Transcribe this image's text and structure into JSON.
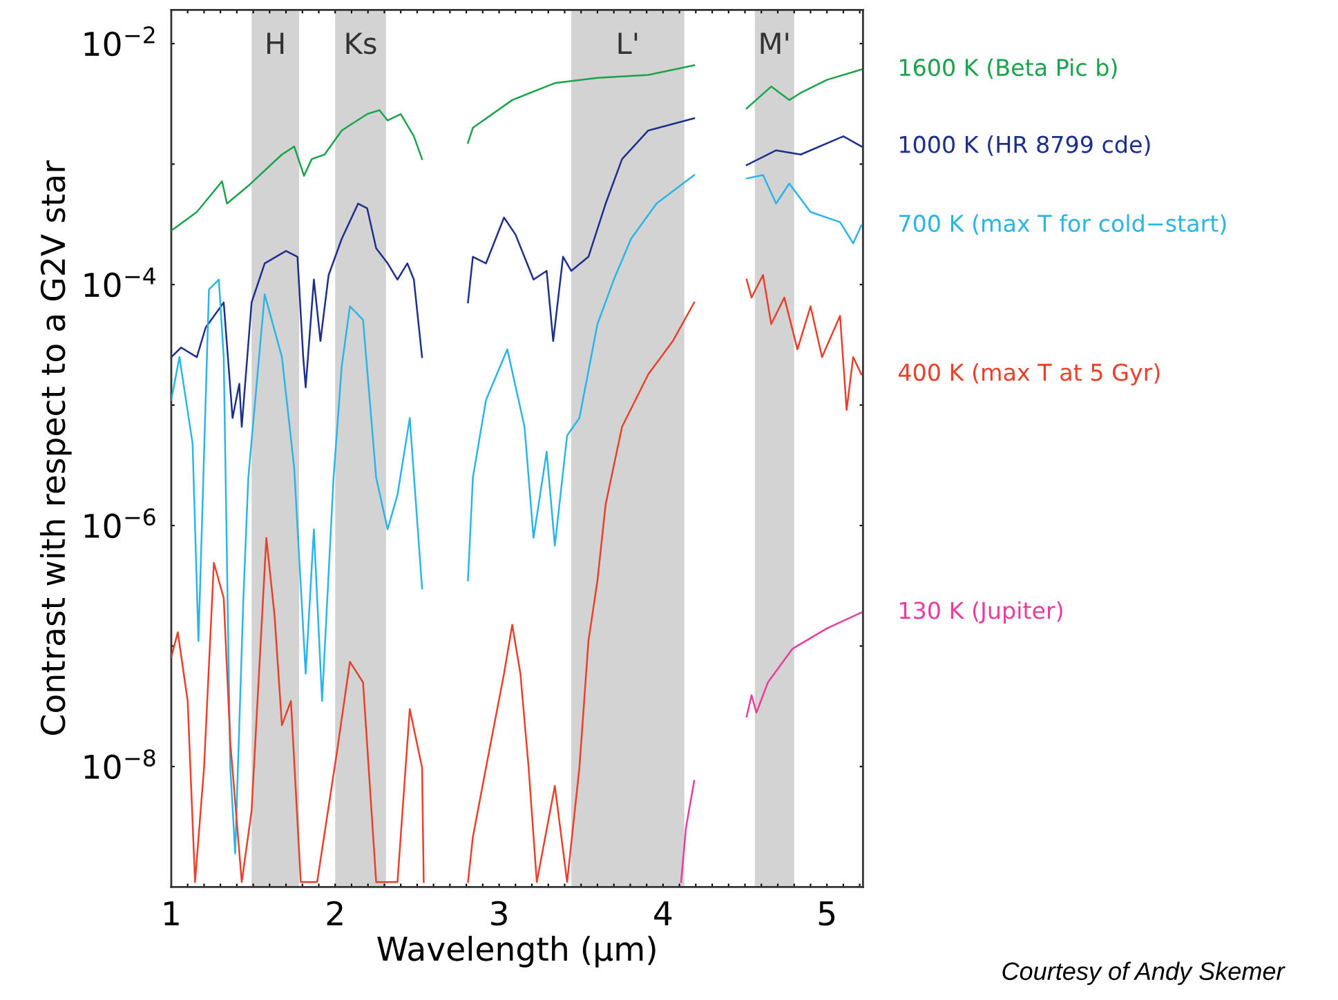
{
  "chart_data": {
    "type": "line",
    "xlabel": "Wavelength (μm)",
    "ylabel": "Contrast with respect to a G2V star",
    "log": "y",
    "xlim": [
      1,
      5.22
    ],
    "ylim": [
      1e-09,
      0.019
    ],
    "xticks": [
      1,
      2,
      3,
      4,
      5,
      {
        "value": 1.1,
        "label": null
      },
      {
        "value": 1.2,
        "label": null
      },
      {
        "value": 1.3,
        "label": null
      },
      {
        "value": 1.4,
        "label": null
      },
      {
        "value": 1.5,
        "label": null
      },
      {
        "value": 1.6,
        "label": null
      },
      {
        "value": 1.7,
        "label": null
      },
      {
        "value": 1.8,
        "label": null
      },
      {
        "value": 1.9,
        "label": null
      },
      {
        "value": 2.1,
        "label": null
      },
      {
        "value": 2.2,
        "label": null
      },
      {
        "value": 2.3,
        "label": null
      },
      {
        "value": 2.4,
        "label": null
      },
      {
        "value": 2.5,
        "label": null
      },
      {
        "value": 2.6,
        "label": null
      },
      {
        "value": 2.7,
        "label": null
      },
      {
        "value": 2.8,
        "label": null
      },
      {
        "value": 2.9,
        "label": null
      },
      {
        "value": 3.1,
        "label": null
      },
      {
        "value": 3.2,
        "label": null
      },
      {
        "value": 3.3,
        "label": null
      },
      {
        "value": 3.4,
        "label": null
      },
      {
        "value": 3.5,
        "label": null
      },
      {
        "value": 3.6,
        "label": null
      },
      {
        "value": 3.7,
        "label": null
      },
      {
        "value": 3.8,
        "label": null
      },
      {
        "value": 3.9,
        "label": null
      },
      {
        "value": 4.1,
        "label": null
      },
      {
        "value": 4.2,
        "label": null
      },
      {
        "value": 4.3,
        "label": null
      },
      {
        "value": 4.4,
        "label": null
      },
      {
        "value": 4.5,
        "label": null
      },
      {
        "value": 4.6,
        "label": null
      },
      {
        "value": 4.7,
        "label": null
      },
      {
        "value": 4.8,
        "label": null
      },
      {
        "value": 4.9,
        "label": null
      },
      {
        "value": 5.1,
        "label": null
      },
      {
        "value": 5.2,
        "label": null
      }
    ],
    "yticks": [
      {
        "value": 0.01,
        "label": "10$^{−2}$"
      },
      {
        "value": 0.001,
        "label": null
      },
      {
        "value": 0.0001,
        "label": "10$^{−4}$"
      },
      {
        "value": 1e-05,
        "label": null
      },
      {
        "value": 1e-06,
        "label": "10$^{−6}$"
      },
      {
        "value": 1e-07,
        "label": null
      },
      {
        "value": 1e-08,
        "label": "10$^{−8}$"
      }
    ],
    "grid": false,
    "legend": false,
    "marker": "none",
    "line_style": "solid",
    "bands": [
      {
        "axis": "x",
        "from": 1.49,
        "to": 1.78,
        "label": "H",
        "color": "#d3d3d3"
      },
      {
        "axis": "x",
        "from": 2.0,
        "to": 2.31,
        "label": "Ks",
        "color": "#d3d3d3"
      },
      {
        "axis": "x",
        "from": 3.44,
        "to": 4.13,
        "label": "L'",
        "color": "#d3d3d3"
      },
      {
        "axis": "x",
        "from": 4.56,
        "to": 4.8,
        "label": "M'",
        "color": "#d3d3d3"
      }
    ],
    "annotations": [
      "Courtesy of Andy Skemer"
    ],
    "series": [
      {
        "name": "1600 K (Beta Pic b)",
        "color": "#1aa34a",
        "x": [
          1.0,
          1.156,
          1.31,
          1.34,
          1.47,
          1.675,
          1.75,
          1.81,
          1.857,
          1.935,
          2.04,
          2.195,
          2.27,
          2.32,
          2.4,
          2.48,
          2.53,
          2.65,
          2.81,
          2.84,
          3.08,
          3.34,
          3.6,
          3.91,
          4.19,
          4.35,
          4.51,
          4.66,
          4.77,
          4.84,
          5.0,
          5.21
        ],
        "values": [
          0.00028,
          0.0004,
          0.00072,
          0.00047,
          0.00066,
          0.0012,
          0.0014,
          0.0008,
          0.0011,
          0.0012,
          0.0019,
          0.0026,
          0.0028,
          0.0023,
          0.0026,
          0.0017,
          0.0011,
          null,
          0.0015,
          0.002,
          0.0034,
          0.0047,
          0.0052,
          0.0055,
          0.0066,
          null,
          0.0029,
          0.0044,
          0.0034,
          0.0039,
          0.005,
          0.0061
        ]
      },
      {
        "name": "1000 K (HR 8799 cde)",
        "color": "#1c2f8c",
        "x": [
          1.0,
          1.06,
          1.156,
          1.21,
          1.32,
          1.374,
          1.415,
          1.43,
          1.49,
          1.57,
          1.7,
          1.77,
          1.805,
          1.82,
          1.87,
          1.91,
          1.96,
          2.04,
          2.14,
          2.195,
          2.25,
          2.32,
          2.38,
          2.44,
          2.48,
          2.53,
          2.65,
          2.81,
          2.84,
          2.92,
          3.03,
          3.1,
          3.21,
          3.29,
          3.33,
          3.39,
          3.44,
          3.545,
          3.65,
          3.75,
          3.91,
          4.19,
          4.35,
          4.51,
          4.69,
          4.84,
          5.1,
          5.21
        ],
        "values": [
          2.5e-05,
          3e-05,
          2.5e-05,
          4.4e-05,
          7.1e-05,
          7.8e-06,
          1.5e-05,
          6.6e-06,
          7.1e-05,
          0.00015,
          0.00019,
          0.00017,
          2.5e-05,
          1.4e-05,
          0.00011,
          3.4e-05,
          0.00012,
          0.00024,
          0.00047,
          0.00043,
          0.0002,
          0.00015,
          0.00011,
          0.00015,
          0.00011,
          2.5e-05,
          null,
          7.1e-05,
          0.00017,
          0.00015,
          0.00036,
          0.00026,
          0.00011,
          0.00013,
          3.4e-05,
          0.00017,
          0.00013,
          0.00017,
          0.00047,
          0.0011,
          0.0019,
          0.0024,
          null,
          0.00098,
          0.0013,
          0.0012,
          0.0017,
          0.0014
        ]
      },
      {
        "name": "700 K (max T for cold−start)",
        "color": "#29b5e8",
        "x": [
          1.0,
          1.05,
          1.13,
          1.166,
          1.23,
          1.29,
          1.32,
          1.36,
          1.39,
          1.44,
          1.47,
          1.57,
          1.675,
          1.75,
          1.82,
          1.87,
          1.92,
          1.99,
          2.04,
          2.09,
          2.17,
          2.25,
          2.32,
          2.38,
          2.455,
          2.53,
          2.65,
          2.81,
          2.84,
          2.92,
          3.05,
          3.155,
          3.21,
          3.29,
          3.34,
          3.415,
          3.49,
          3.6,
          3.7,
          3.805,
          3.96,
          4.19,
          4.35,
          4.51,
          4.61,
          4.69,
          4.77,
          4.9,
          5.08,
          5.16,
          5.21
        ],
        "values": [
          1.1e-05,
          2.5e-05,
          4.8e-06,
          1.1e-07,
          9.1e-05,
          0.00011,
          2.5e-05,
          9.8e-09,
          1.9e-09,
          2.5e-07,
          2.5e-06,
          8.3e-05,
          2.5e-05,
          3e-06,
          5.9e-08,
          9.3e-07,
          3.5e-08,
          2.5e-06,
          2.1e-05,
          6.6e-05,
          5.1e-05,
          2.5e-06,
          9.3e-07,
          1.8e-06,
          7.8e-06,
          3e-07,
          null,
          3.5e-07,
          2.5e-06,
          1.1e-05,
          2.9e-05,
          6.6e-06,
          7.9e-07,
          4.1e-06,
          6.8e-07,
          5.6e-06,
          7.8e-06,
          4.7e-05,
          0.00011,
          0.00024,
          0.00047,
          0.00081,
          null,
          0.00076,
          0.00081,
          0.00047,
          0.00069,
          0.0004,
          0.00033,
          0.00022,
          0.00031
        ]
      },
      {
        "name": "400 K (max T at 5 Gyr)",
        "color": "#e8402a",
        "x": [
          1.0,
          1.04,
          1.1,
          1.145,
          1.2,
          1.26,
          1.32,
          1.36,
          1.43,
          1.49,
          1.58,
          1.63,
          1.675,
          1.73,
          1.79,
          1.89,
          2.01,
          2.09,
          2.17,
          2.25,
          2.38,
          2.455,
          2.53,
          2.54,
          2.65,
          2.81,
          2.84,
          2.92,
          3.03,
          3.08,
          3.13,
          3.18,
          3.23,
          3.34,
          3.415,
          3.49,
          3.545,
          3.6,
          3.65,
          3.75,
          3.91,
          4.06,
          4.19,
          4.35,
          4.51,
          4.54,
          4.61,
          4.66,
          4.74,
          4.82,
          4.9,
          4.97,
          5.08,
          5.12,
          5.16,
          5.21
        ],
        "values": [
          8.1e-08,
          1.3e-07,
          3.5e-08,
          1.1e-09,
          9.8e-09,
          4.9e-07,
          2.5e-07,
          1.6e-08,
          1.1e-09,
          4.3e-09,
          7.9e-07,
          1.8e-07,
          2.2e-08,
          3.5e-08,
          1.1e-09,
          1.1e-09,
          1.3e-08,
          7.4e-08,
          5e-08,
          1.1e-09,
          1.1e-09,
          3e-08,
          9.8e-09,
          1.1e-09,
          null,
          1.1e-09,
          2.6e-09,
          9.8e-09,
          5.9e-08,
          1.5e-07,
          5.9e-08,
          9.8e-09,
          1.1e-09,
          6.9e-09,
          1.1e-09,
          9.8e-09,
          1.1e-07,
          3.5e-07,
          1.5e-06,
          6.6e-06,
          1.8e-05,
          3.4e-05,
          7.1e-05,
          null,
          0.00011,
          7.8e-05,
          0.00012,
          4.7e-05,
          7.8e-05,
          2.9e-05,
          6.6e-05,
          2.5e-05,
          5.5e-05,
          9.1e-06,
          2.5e-05,
          1.8e-05
        ]
      },
      {
        "name": "130 K (Jupiter)",
        "color": "#e83d9c",
        "x": [
          4.11,
          4.14,
          4.19,
          4.35,
          4.51,
          4.54,
          4.57,
          4.64,
          4.79,
          5.0,
          5.21
        ],
        "values": [
          1.1e-09,
          3.1e-09,
          7.6e-09,
          null,
          2.6e-08,
          3.9e-08,
          2.8e-08,
          5e-08,
          9.5e-08,
          1.4e-07,
          1.9e-07
        ]
      }
    ]
  }
}
